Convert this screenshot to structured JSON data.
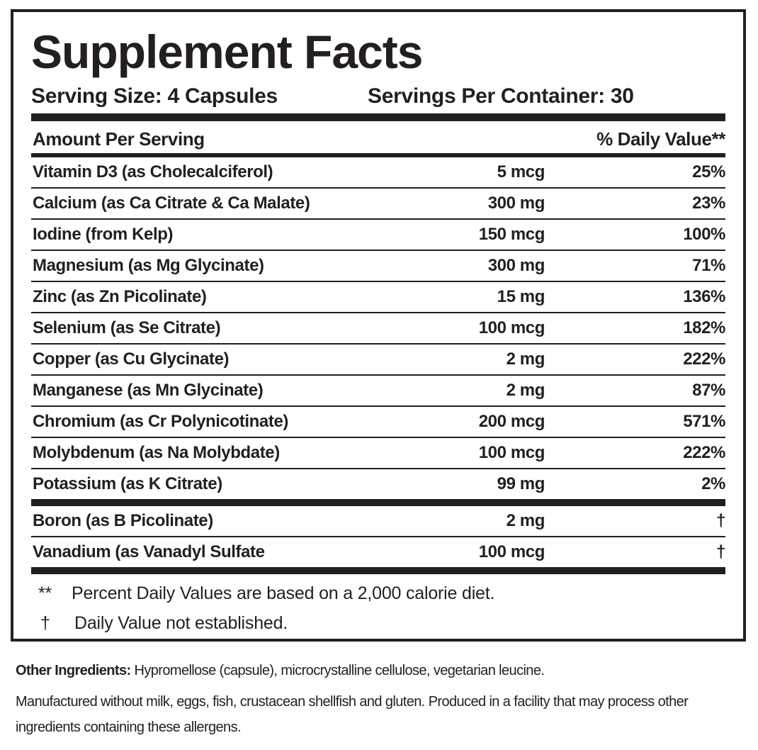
{
  "header": {
    "title": "Supplement Facts",
    "serving_size": "Serving Size: 4 Capsules",
    "servings_per_container": "Servings Per Container: 30"
  },
  "table": {
    "columns": [
      "Amount Per Serving",
      "% Daily Value**"
    ],
    "rows": [
      [
        "Vitamin D3 (as Cholecalciferol)",
        "5 mcg",
        "25%"
      ],
      [
        "Calcium (as Ca Citrate & Ca Malate)",
        "300 mg",
        "23%"
      ],
      [
        "Iodine (from Kelp)",
        "150 mcg",
        "100%"
      ],
      [
        "Magnesium (as Mg Glycinate)",
        "300 mg",
        "71%"
      ],
      [
        "Zinc (as Zn Picolinate)",
        "15 mg",
        "136%"
      ],
      [
        "Selenium (as Se Citrate)",
        "100 mcg",
        "182%"
      ],
      [
        "Copper (as Cu Glycinate)",
        "2 mg",
        "222%"
      ],
      [
        "Manganese (as Mn Glycinate)",
        "2 mg",
        "87%"
      ],
      [
        "Chromium (as Cr Polynicotinate)",
        "200 mcg",
        "571%"
      ],
      [
        "Molybdenum (as Na Molybdate)",
        "100 mcg",
        "222%"
      ],
      [
        "Potassium (as K Citrate)",
        "99 mg",
        "2%"
      ],
      [
        "Boron (as B Picolinate)",
        "2 mg",
        "†"
      ],
      [
        "Vanadium (as Vanadyl Sulfate",
        "100 mcg",
        "†"
      ]
    ]
  },
  "footnotes": [
    {
      "symbol": "**",
      "text": "Percent Daily Values are based on a 2,000 calorie diet."
    },
    {
      "symbol": "†",
      "text": "Daily Value not established."
    }
  ],
  "other_ingredients": {
    "label": "Other Ingredients:",
    "text": "Hypromellose (capsule), microcrystalline cellulose, vegetarian leucine."
  },
  "allergen_statement": "Manufactured without milk, eggs, fish, crustacean shellfish and gluten. Produced in a facility that may process other ingredients containing these allergens."
}
